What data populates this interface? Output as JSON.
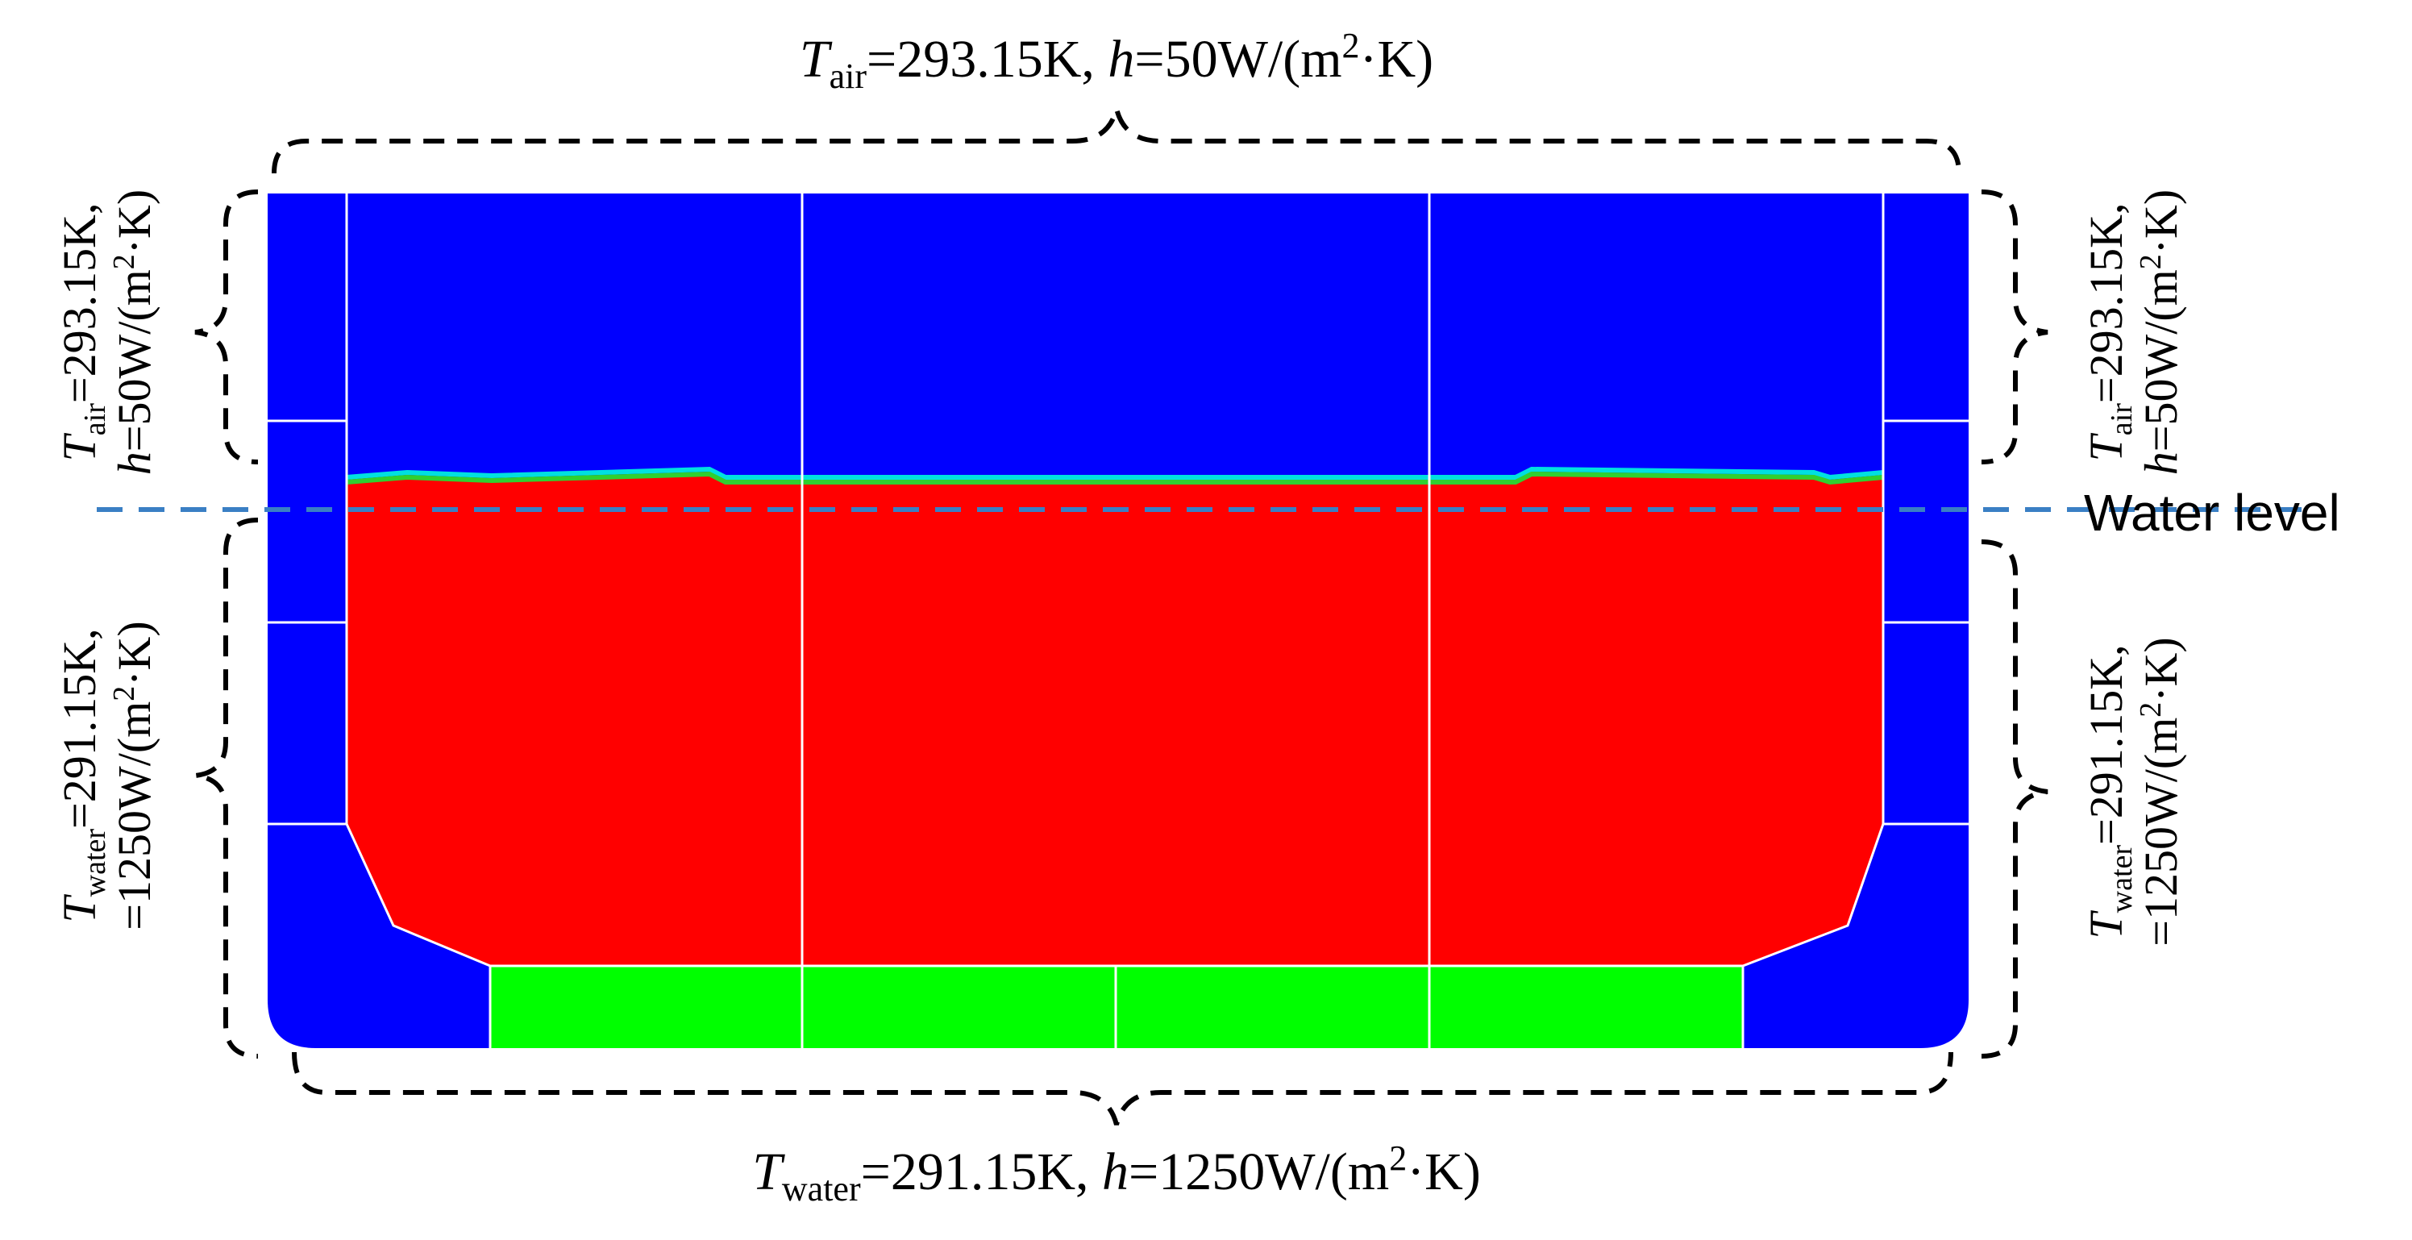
{
  "labels": {
    "top": {
      "sym": "T",
      "sub": "air",
      "value": "=293.15K, ",
      "h_sym": "h",
      "h_value": "=50W/(m",
      "sup": "2",
      "tail": "·K)"
    },
    "bottom": {
      "sym": "T",
      "sub": "water",
      "value": "=291.15K, ",
      "h_sym": "h",
      "h_value": "=1250W/(m",
      "sup": "2",
      "tail": "·K)"
    },
    "left_air": {
      "line1_sym": "T",
      "line1_sub": "air",
      "line1_value": "=293.15K,",
      "line2_sym": "h",
      "line2_value": "=50W/(m",
      "line2_sup": "2",
      "line2_tail": "·K)"
    },
    "left_water": {
      "line1_sym": "T",
      "line1_sub": "water",
      "line1_value": "=291.15K,",
      "line2_value": "=1250W/(m",
      "line2_sup": "2",
      "line2_tail": "·K)"
    },
    "right_air": {
      "line1_sym": "T",
      "line1_sub": "air",
      "line1_value": "=293.15K,",
      "line2_sym": "h",
      "line2_value": "=50W/(m",
      "line2_sup": "2",
      "line2_tail": "·K)"
    },
    "right_water": {
      "line1_sym": "T",
      "line1_sub": "water",
      "line1_value": "=291.15K,",
      "line2_value": "=1250W/(m",
      "line2_sup": "2",
      "line2_tail": "·K)"
    },
    "water_level": "Water level"
  },
  "colors": {
    "air_region": "#0000ff",
    "water_region": "#ff0000",
    "base_region": "#00ff00",
    "divider": "#ffffff",
    "water_level_line": "#3a7fc4",
    "brace": "#000000"
  }
}
